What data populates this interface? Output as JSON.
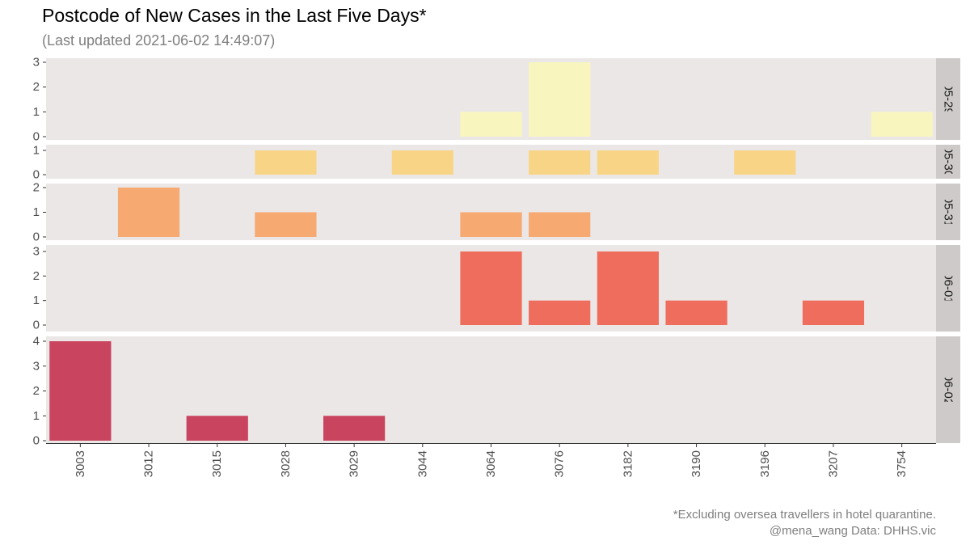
{
  "header": {
    "title": "Postcode of New Cases in the Last Five Days*",
    "subtitle": "(Last updated 2021-06-02 14:49:07)"
  },
  "footer": {
    "note": "*Excluding oversea travellers in hotel quarantine.",
    "credit": "@mena_wang   Data: DHHS.vic"
  },
  "chart_data": {
    "type": "bar",
    "title": "Postcode of New Cases in the Last Five Days*",
    "xlabel": "",
    "ylabel": "",
    "layout": "faceted by date (rows), free y scale",
    "grid": false,
    "categories": [
      "3003",
      "3012",
      "3015",
      "3028",
      "3029",
      "3044",
      "3064",
      "3076",
      "3182",
      "3190",
      "3196",
      "3207",
      "3754"
    ],
    "panels": [
      {
        "date": "05-29",
        "color": "#f8f5bf",
        "yticks": [
          0,
          1,
          2,
          3
        ],
        "ylim": [
          0,
          3
        ],
        "values": [
          0,
          0,
          0,
          0,
          0,
          0,
          1,
          3,
          0,
          0,
          0,
          0,
          1
        ]
      },
      {
        "date": "05-30",
        "color": "#f8d586",
        "yticks": [
          0,
          1
        ],
        "ylim": [
          0,
          1
        ],
        "values": [
          0,
          0,
          0,
          1,
          0,
          1,
          0,
          1,
          1,
          0,
          1,
          0,
          0
        ]
      },
      {
        "date": "05-31",
        "color": "#f6a971",
        "yticks": [
          0,
          1,
          2
        ],
        "ylim": [
          0,
          2
        ],
        "values": [
          0,
          2,
          0,
          1,
          0,
          0,
          1,
          1,
          0,
          0,
          0,
          0,
          0
        ]
      },
      {
        "date": "06-01",
        "color": "#ee6d5c",
        "yticks": [
          0,
          1,
          2,
          3
        ],
        "ylim": [
          0,
          3
        ],
        "values": [
          0,
          0,
          0,
          0,
          0,
          0,
          3,
          1,
          3,
          1,
          0,
          1,
          0
        ]
      },
      {
        "date": "06-02",
        "color": "#c9455f",
        "yticks": [
          0,
          1,
          2,
          3,
          4
        ],
        "ylim": [
          0,
          4
        ],
        "values": [
          4,
          0,
          1,
          0,
          1,
          0,
          0,
          0,
          0,
          0,
          0,
          0,
          0
        ]
      }
    ]
  }
}
